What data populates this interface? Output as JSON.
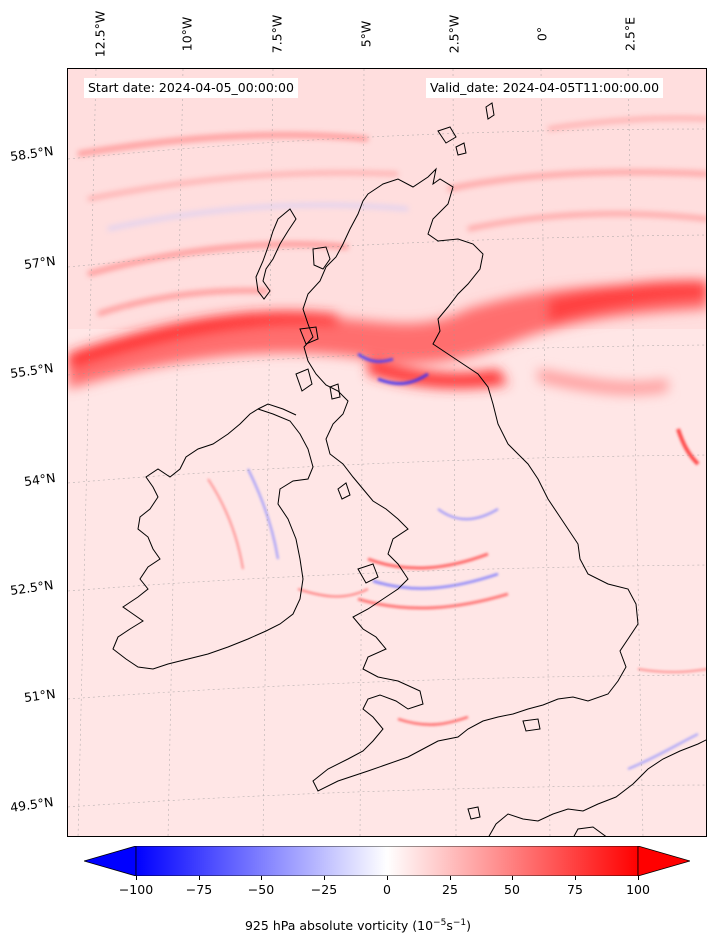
{
  "header": {
    "start_date": "Start date: 2024-04-05_00:00:00",
    "valid_date": "Valid_date: 2024-04-05T11:00:00.00"
  },
  "map": {
    "variable": "925 hPa absolute vorticity",
    "region": "British Isles",
    "lon_labels": [
      "12.5°W",
      "10°W",
      "7.5°W",
      "5°W",
      "2.5°W",
      "0°",
      "2.5°E"
    ],
    "lat_labels": [
      "58.5°N",
      "57°N",
      "55.5°N",
      "54°N",
      "52.5°N",
      "51°N",
      "49.5°N"
    ],
    "colors": {
      "negative": "#0000ff",
      "zero": "#ffffff",
      "positive": "#ff0000",
      "coastline": "#000000"
    }
  },
  "colorbar": {
    "label_text": "925 hPa absolute vorticity (10",
    "label_exp1": "−5",
    "label_mid": "s",
    "label_exp2": "−1",
    "label_end": ")",
    "ticks": [
      "−100",
      "−75",
      "−50",
      "−25",
      "0",
      "25",
      "50",
      "75",
      "100"
    ],
    "min": -100,
    "max": 100,
    "extend": "both"
  }
}
